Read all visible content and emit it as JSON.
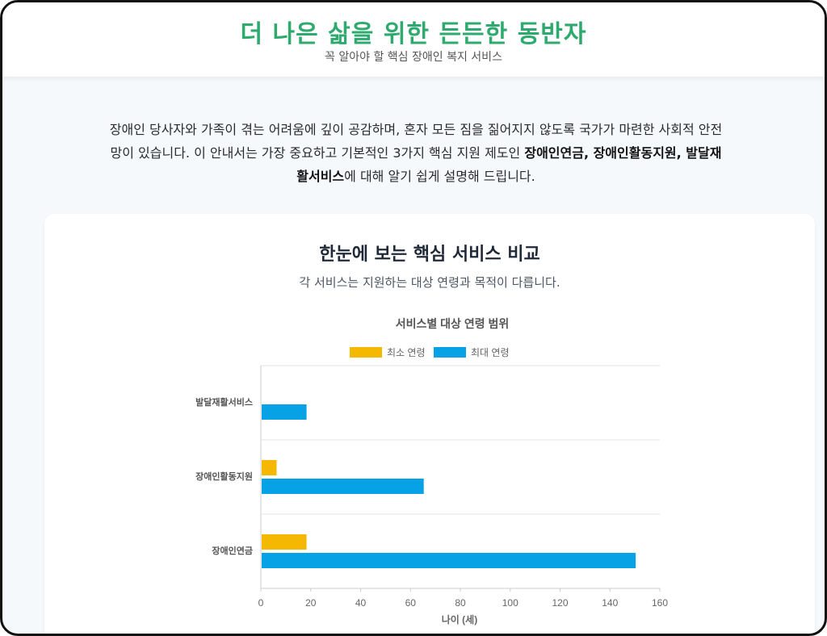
{
  "header": {
    "title": "더 나은 삶을 위한 든든한 동반자",
    "subtitle": "꼭 알아야 할 핵심 장애인 복지 서비스"
  },
  "intro": {
    "text_before": "장애인 당사자와 가족이 겪는 어려움에 깊이 공감하며, 혼자 모든 짐을 짊어지지 않도록 국가가 마련한 사회적 안전망이 있습니다. 이 안내서는 가장 중요하고 기본적인 3가지 핵심 지원 제도인 ",
    "bold": "장애인연금, 장애인활동지원, 발달재활서비스",
    "text_after": "에 대해 알기 쉽게 설명해 드립니다."
  },
  "section": {
    "title": "한눈에 보는 핵심 서비스 비교",
    "description": "각 서비스는 지원하는 대상 연령과 목적이 다릅니다."
  },
  "chart_data": {
    "type": "bar",
    "orientation": "horizontal",
    "title": "서비스별 대상 연령 범위",
    "categories": [
      "발달재활서비스",
      "장애인활동지원",
      "장애인연금"
    ],
    "series": [
      {
        "name": "최소 연령",
        "color": "#f5b800",
        "values": [
          0,
          6,
          18
        ]
      },
      {
        "name": "최대 연령",
        "color": "#06a2e5",
        "values": [
          18,
          65,
          150
        ]
      }
    ],
    "xlabel": "나이 (세)",
    "ylabel": "",
    "xlim": [
      0,
      160
    ],
    "xticks": [
      0,
      20,
      40,
      60,
      80,
      100,
      120,
      140,
      160
    ],
    "legend_position": "top",
    "grid": "category-separators"
  }
}
